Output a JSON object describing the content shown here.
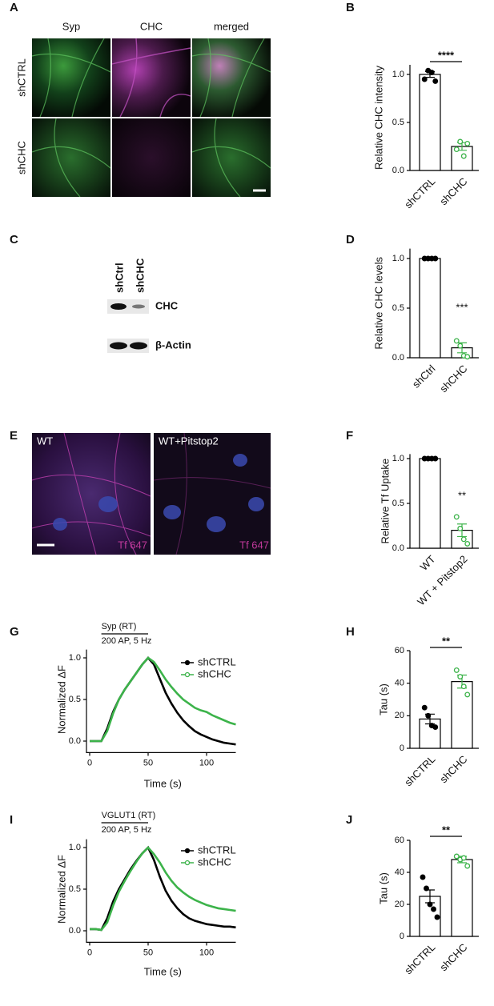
{
  "panel_labels": [
    "A",
    "B",
    "C",
    "D",
    "E",
    "F",
    "G",
    "H",
    "I",
    "J"
  ],
  "micrograph_a": {
    "columns": [
      "Syp",
      "CHC",
      "merged"
    ],
    "rows": [
      "shCTRL",
      "shCHC"
    ]
  },
  "blot_c": {
    "lanes": [
      "shCtrl",
      "shCHC"
    ],
    "bands": [
      "CHC",
      "β-Actin"
    ]
  },
  "micrograph_e": {
    "panels": [
      {
        "label": "WT",
        "stain": "Tf 647"
      },
      {
        "label": "WT+Pitstop2",
        "stain": "Tf 647"
      }
    ]
  },
  "chart_data": [
    {
      "type": "bar",
      "ylabel": "Relative CHC intensity",
      "categories": [
        "shCTRL",
        "shCHC"
      ],
      "colors": [
        "#000000",
        "#3cb34a"
      ],
      "values": [
        1.0,
        0.25
      ],
      "errors": [
        0.03,
        0.04
      ],
      "points": [
        [
          0.95,
          1.04,
          1.02,
          0.93
        ],
        [
          0.22,
          0.3,
          0.15,
          0.28
        ]
      ],
      "ylim": [
        0,
        1.1
      ],
      "yticks": [
        {
          "value": 0,
          "label": "0.0"
        },
        {
          "value": 0.5,
          "label": "0.5"
        },
        {
          "value": 1,
          "label": "1.0"
        }
      ],
      "significance": {
        "text": "****",
        "bracket": true
      }
    },
    {
      "type": "bar",
      "ylabel": "Relative CHC levels",
      "categories": [
        "shCtrl",
        "shCHC"
      ],
      "colors": [
        "#000000",
        "#3cb34a"
      ],
      "values": [
        1.0,
        0.1
      ],
      "errors": [
        0,
        0.05
      ],
      "points": [
        [
          1,
          1,
          1,
          1
        ],
        [
          0.17,
          0.12,
          0.02,
          0.01
        ]
      ],
      "ylim": [
        0,
        1.1
      ],
      "yticks": [
        {
          "value": 0,
          "label": "0.0"
        },
        {
          "value": 0.5,
          "label": "0.5"
        },
        {
          "value": 1,
          "label": "1.0"
        }
      ],
      "significance": {
        "text": "***",
        "bracket": false
      }
    },
    {
      "type": "bar",
      "ylabel": "Relative Tf Uptake",
      "categories": [
        "WT",
        "WT + Pitstop2"
      ],
      "colors": [
        "#000000",
        "#3cb34a"
      ],
      "values": [
        1.0,
        0.2
      ],
      "errors": [
        0,
        0.07
      ],
      "points": [
        [
          1,
          1,
          1,
          1
        ],
        [
          0.35,
          0.22,
          0.1,
          0.05
        ]
      ],
      "ylim": [
        0,
        1.05
      ],
      "yticks": [
        {
          "value": 0,
          "label": "0.0"
        },
        {
          "value": 0.5,
          "label": "0.5"
        },
        {
          "value": 1,
          "label": "1.0"
        }
      ],
      "significance": {
        "text": "**",
        "bracket": false
      }
    },
    {
      "type": "line",
      "ylabel": "Normalized ΔF",
      "xlabel": "Time  (s)",
      "annotations": [
        "Syp (RT)",
        "200 AP, 5 Hz"
      ],
      "stimulus": [
        10,
        50
      ],
      "x": [
        0,
        5,
        10,
        15,
        20,
        25,
        30,
        35,
        40,
        45,
        50,
        55,
        60,
        65,
        70,
        75,
        80,
        85,
        90,
        95,
        100,
        105,
        110,
        115,
        120,
        125
      ],
      "series": [
        {
          "name": "shCTRL",
          "color": "#000000",
          "values": [
            0,
            0,
            0,
            0.15,
            0.35,
            0.5,
            0.62,
            0.72,
            0.82,
            0.92,
            1.0,
            0.92,
            0.75,
            0.58,
            0.45,
            0.34,
            0.25,
            0.18,
            0.12,
            0.08,
            0.05,
            0.02,
            0.0,
            -0.02,
            -0.03,
            -0.04
          ]
        },
        {
          "name": "shCHC",
          "color": "#3cb34a",
          "values": [
            0,
            0,
            0,
            0.12,
            0.33,
            0.5,
            0.62,
            0.72,
            0.82,
            0.92,
            1.0,
            0.95,
            0.85,
            0.74,
            0.65,
            0.57,
            0.5,
            0.45,
            0.4,
            0.37,
            0.35,
            0.31,
            0.28,
            0.25,
            0.22,
            0.2
          ]
        }
      ],
      "xlim": [
        0,
        125
      ],
      "xticks": [
        0,
        50,
        100
      ],
      "ylim": [
        -0.1,
        1.1
      ],
      "yticks": [
        {
          "value": 0,
          "label": "0.0"
        },
        {
          "value": 0.5,
          "label": "0.5"
        },
        {
          "value": 1,
          "label": "1.0"
        }
      ]
    },
    {
      "type": "bar",
      "ylabel": "Tau (s)",
      "categories": [
        "shCTRL",
        "shCHC"
      ],
      "colors": [
        "#000000",
        "#3cb34a"
      ],
      "values": [
        18,
        41
      ],
      "errors": [
        3,
        4
      ],
      "points": [
        [
          25,
          20,
          14,
          13
        ],
        [
          48,
          44,
          38,
          33
        ]
      ],
      "ylim": [
        0,
        60
      ],
      "yticks": [
        0,
        20,
        40,
        60
      ],
      "significance": {
        "text": "**",
        "bracket": true
      }
    },
    {
      "type": "line",
      "ylabel": "Normalized ΔF",
      "xlabel": "Time  (s)",
      "annotations": [
        "VGLUT1 (RT)",
        "200 AP, 5 Hz"
      ],
      "stimulus": [
        10,
        50
      ],
      "x": [
        0,
        5,
        10,
        15,
        20,
        25,
        30,
        35,
        40,
        45,
        50,
        55,
        60,
        65,
        70,
        75,
        80,
        85,
        90,
        95,
        100,
        105,
        110,
        115,
        120,
        125
      ],
      "series": [
        {
          "name": "shCTRL",
          "color": "#000000",
          "values": [
            0.02,
            0.02,
            0.01,
            0.15,
            0.35,
            0.5,
            0.62,
            0.74,
            0.84,
            0.93,
            1.0,
            0.85,
            0.65,
            0.48,
            0.36,
            0.27,
            0.2,
            0.15,
            0.12,
            0.1,
            0.08,
            0.07,
            0.06,
            0.05,
            0.05,
            0.04
          ]
        },
        {
          "name": "shCHC",
          "color": "#3cb34a",
          "values": [
            0.02,
            0.02,
            0.01,
            0.1,
            0.3,
            0.47,
            0.6,
            0.72,
            0.83,
            0.93,
            1.0,
            0.92,
            0.82,
            0.7,
            0.6,
            0.52,
            0.46,
            0.41,
            0.37,
            0.34,
            0.31,
            0.29,
            0.27,
            0.26,
            0.25,
            0.24
          ]
        }
      ],
      "xlim": [
        0,
        125
      ],
      "xticks": [
        0,
        50,
        100
      ],
      "ylim": [
        -0.1,
        1.1
      ],
      "yticks": [
        {
          "value": 0,
          "label": "0.0"
        },
        {
          "value": 0.5,
          "label": "0.5"
        },
        {
          "value": 1,
          "label": "1.0"
        }
      ]
    },
    {
      "type": "bar",
      "ylabel": "Tau (s)",
      "categories": [
        "shCTRL",
        "shCHC"
      ],
      "colors": [
        "#000000",
        "#3cb34a"
      ],
      "values": [
        25,
        48
      ],
      "errors": [
        4,
        2
      ],
      "points": [
        [
          37,
          30,
          20,
          17,
          12
        ],
        [
          50,
          48,
          49,
          44
        ]
      ],
      "ylim": [
        0,
        60
      ],
      "yticks": [
        0,
        20,
        40,
        60
      ],
      "significance": {
        "text": "**",
        "bracket": true
      }
    }
  ]
}
